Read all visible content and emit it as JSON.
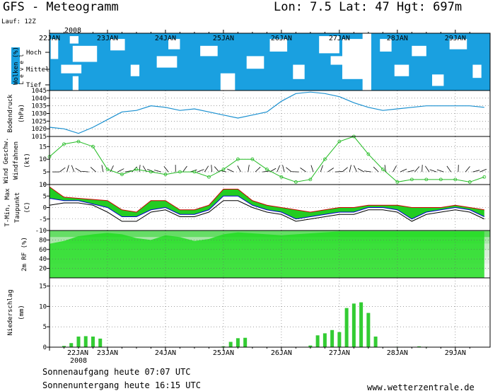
{
  "header": {
    "title": "GFS - Meteogramm",
    "location": "Lon: 7.5 Lat: 47 Hgt: 697m",
    "run": "Lauf: 12Z",
    "year": "2008"
  },
  "footer": {
    "sunrise": "Sonnenaufgang heute 07:07 UTC",
    "sunset": "Sonnenuntergang heute 16:15 UTC",
    "website": "www.wetterzentrale.de"
  },
  "x_axis": {
    "top_labels": [
      "22JAN",
      "23JAN",
      "24JAN",
      "25JAN",
      "26JAN",
      "27JAN",
      "28JAN",
      "29JAN"
    ],
    "bottom_labels": [
      "22JAN",
      "23JAN",
      "24JAN",
      "25JAN",
      "26JAN",
      "27JAN",
      "28JAN",
      "29JAN"
    ],
    "bottom_year": "2008",
    "range_days": [
      0,
      7.6
    ]
  },
  "colors": {
    "cloud": "#1aa0e0",
    "pressure": "#1a90d0",
    "wind": "#22bb22",
    "temp_band": "#22cc22",
    "tmin": "#0000cc",
    "tmax": "#cc0000",
    "rh_bright": "#22dd22",
    "precip": "#33cc33"
  },
  "chart_data": [
    {
      "type": "area",
      "name": "clouds",
      "ylabel_main": "Wolken (%)",
      "ylabel_sub": "L e v e l",
      "levels": [
        "Hoch",
        "Mittel",
        "Tief"
      ]
    },
    {
      "type": "line",
      "name": "pressure",
      "ylabel": "Bodendruck",
      "yunit": "(hPa)",
      "ylim": [
        1015,
        1045
      ],
      "yticks": [
        1015,
        1020,
        1025,
        1030,
        1035,
        1040,
        1045
      ],
      "x": [
        0,
        0.25,
        0.5,
        0.75,
        1,
        1.25,
        1.5,
        1.75,
        2,
        2.25,
        2.5,
        2.75,
        3,
        3.25,
        3.5,
        3.75,
        4,
        4.25,
        4.5,
        4.75,
        5,
        5.25,
        5.5,
        5.75,
        6,
        6.25,
        6.5,
        6.75,
        7,
        7.25,
        7.5
      ],
      "values": [
        1021,
        1020,
        1017,
        1021,
        1026,
        1031,
        1032,
        1035,
        1034,
        1032,
        1033,
        1031,
        1029,
        1027,
        1029,
        1031,
        1038,
        1043,
        1044,
        1043,
        1041,
        1037,
        1034,
        1032,
        1033,
        1034,
        1035,
        1035,
        1035,
        1035,
        1034
      ]
    },
    {
      "type": "line",
      "name": "wind",
      "ylabel": "Wind Geschw.",
      "ylabel2": "Windfahnen",
      "yunit": "(kt)",
      "ylim": [
        0,
        19
      ],
      "yticks": [
        0,
        5,
        10,
        15
      ],
      "x": [
        0,
        0.25,
        0.5,
        0.75,
        1,
        1.25,
        1.5,
        1.75,
        2,
        2.25,
        2.5,
        2.75,
        3,
        3.25,
        3.5,
        3.75,
        4,
        4.25,
        4.5,
        4.75,
        5,
        5.25,
        5.5,
        5.75,
        6,
        6.25,
        6.5,
        6.75,
        7,
        7.25,
        7.5
      ],
      "values": [
        11,
        16,
        17,
        15,
        6,
        4,
        6,
        5,
        4,
        5,
        5,
        3,
        6,
        10,
        10,
        6,
        3,
        1,
        2,
        10,
        17,
        19,
        12,
        6,
        1,
        2,
        2,
        2,
        2,
        1,
        3
      ]
    },
    {
      "type": "area",
      "name": "temperature",
      "ylabel": "T-Min, Max",
      "ylabel2": "Taupunkt",
      "yunit": "(C)",
      "ylim": [
        -10,
        10
      ],
      "yticks": [
        -10,
        -5,
        0,
        5,
        10
      ],
      "x": [
        0,
        0.25,
        0.5,
        0.75,
        1,
        1.25,
        1.5,
        1.75,
        2,
        2.25,
        2.5,
        2.75,
        3,
        3.25,
        3.5,
        3.75,
        4,
        4.25,
        4.5,
        4.75,
        5,
        5.25,
        5.5,
        5.75,
        6,
        6.25,
        6.5,
        6.75,
        7,
        7.25,
        7.5
      ],
      "tmax": [
        9,
        4.5,
        4,
        3.5,
        3,
        -1,
        -2,
        3,
        3,
        -1,
        -1,
        1,
        8,
        8,
        3,
        1,
        0,
        -1,
        -2,
        -1,
        0,
        0,
        1,
        1,
        1,
        0,
        0,
        0,
        1,
        0,
        -1
      ],
      "tmin": [
        4,
        3,
        3,
        1.5,
        0,
        -4,
        -4,
        -1,
        0,
        -3,
        -3,
        -1,
        5,
        5,
        1,
        -1,
        -2,
        -5,
        -4,
        -3,
        -2,
        -2,
        0,
        0,
        -1,
        -5,
        -2,
        -1,
        0,
        -1,
        -4
      ],
      "dewpoint": [
        1,
        2,
        2,
        1,
        -2,
        -6,
        -6,
        -2,
        -1,
        -4,
        -4,
        -2,
        3,
        3,
        0,
        -2,
        -3,
        -6,
        -5,
        -4,
        -3,
        -3,
        -1,
        -1,
        -2,
        -6,
        -3,
        -2,
        -1,
        -2,
        -5
      ]
    },
    {
      "type": "area",
      "name": "humidity",
      "ylabel": "2m RF (%)",
      "ylim": [
        0,
        100
      ],
      "yticks": [
        20,
        40,
        60,
        80
      ],
      "x": [
        0,
        0.25,
        0.5,
        0.75,
        1,
        1.25,
        1.5,
        1.75,
        2,
        2.25,
        2.5,
        2.75,
        3,
        3.25,
        3.5,
        3.75,
        4,
        4.25,
        4.5,
        4.75,
        5,
        5.25,
        5.5,
        5.75,
        6,
        6.25,
        6.5,
        6.75,
        7,
        7.25,
        7.5
      ],
      "values": [
        72,
        78,
        88,
        92,
        95,
        92,
        84,
        80,
        90,
        86,
        78,
        82,
        92,
        96,
        94,
        92,
        90,
        92,
        94,
        96,
        98,
        98,
        98,
        98,
        98,
        98,
        98,
        98,
        98,
        98,
        98
      ]
    },
    {
      "type": "bar",
      "name": "precipitation",
      "ylabel": "Niederschlag",
      "yunit": "(mm)",
      "ylim": [
        0,
        17
      ],
      "yticks": [
        0,
        5,
        10,
        15
      ],
      "x": [
        0.25,
        0.375,
        0.5,
        0.625,
        0.75,
        0.875,
        3.0,
        3.125,
        3.25,
        3.375,
        4.5,
        4.625,
        4.75,
        4.875,
        5.0,
        5.125,
        5.25,
        5.375,
        5.5,
        5.625,
        6.0,
        6.375,
        6.5
      ],
      "values": [
        0.3,
        1.0,
        2.6,
        2.7,
        2.6,
        2.1,
        0.2,
        1.3,
        2.2,
        2.3,
        0.4,
        2.9,
        3.4,
        4.2,
        3.7,
        9.6,
        10.7,
        11.0,
        8.4,
        2.6,
        0.1,
        0.2,
        0.1
      ]
    }
  ]
}
